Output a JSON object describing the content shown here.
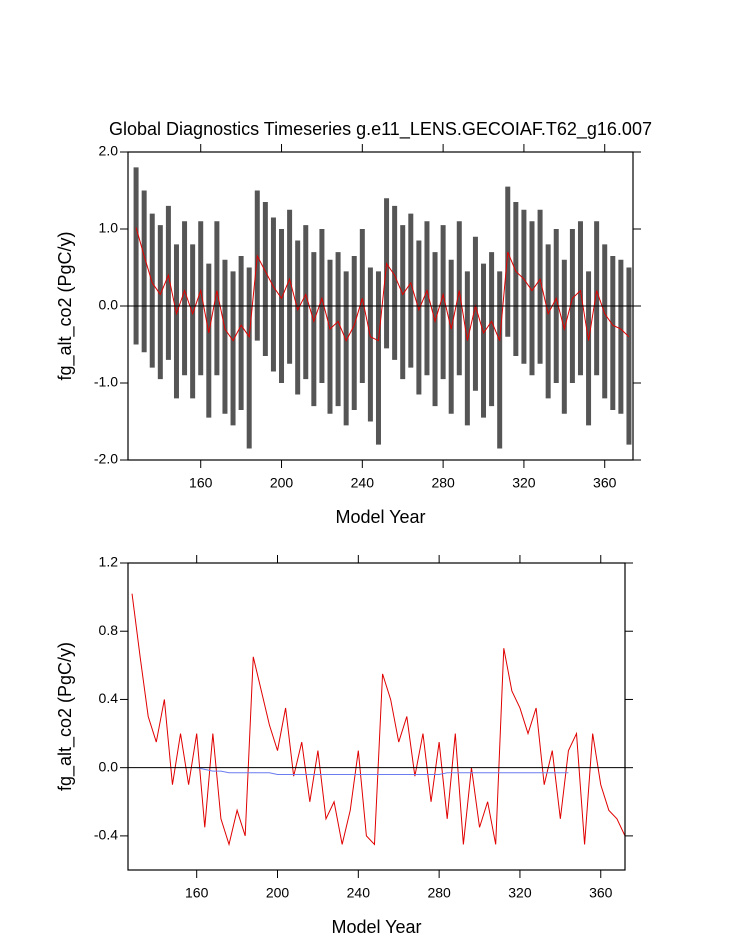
{
  "chart_data": [
    {
      "type": "range",
      "title": "Global Diagnostics Timeseries g.e11_LENS.GECOIAF.T62_g16.007",
      "x_label": "Model Year",
      "y_label": "fg_alt_co2 (PgC/y)",
      "x": [
        128,
        132,
        136,
        140,
        144,
        148,
        152,
        156,
        160,
        164,
        168,
        172,
        176,
        180,
        184,
        188,
        192,
        196,
        200,
        204,
        208,
        212,
        216,
        220,
        224,
        228,
        232,
        236,
        240,
        244,
        248,
        252,
        256,
        260,
        264,
        268,
        272,
        276,
        280,
        284,
        288,
        292,
        296,
        300,
        304,
        308,
        312,
        316,
        320,
        324,
        328,
        332,
        336,
        340,
        344,
        348,
        352,
        356,
        360,
        364,
        368,
        372
      ],
      "xlim": [
        124,
        374
      ],
      "xticks": [
        160,
        200,
        240,
        280,
        320,
        360
      ],
      "ylim": [
        -2,
        2
      ],
      "yticks": [
        {
          "value": -2,
          "label": "-2.0"
        },
        {
          "value": -1,
          "label": "-1.0"
        },
        {
          "value": 0,
          "label": "0.0"
        },
        {
          "value": 1,
          "label": "1.0"
        },
        {
          "value": 2,
          "label": "2.0"
        }
      ],
      "series": [
        {
          "color": "#555555",
          "values": [
            1.8,
            1.5,
            1.2,
            1.05,
            1.3,
            0.8,
            1.1,
            0.8,
            1.1,
            0.55,
            1.1,
            0.6,
            0.45,
            0.65,
            0.5,
            1.5,
            1.35,
            1.15,
            1.0,
            1.25,
            0.85,
            1.05,
            0.7,
            1.0,
            0.6,
            0.7,
            0.45,
            0.65,
            1.0,
            0.5,
            0.45,
            1.4,
            1.3,
            1.05,
            1.2,
            0.85,
            1.1,
            0.7,
            1.05,
            0.6,
            1.1,
            0.45,
            0.9,
            0.55,
            0.7,
            0.45,
            1.55,
            1.35,
            1.25,
            1.1,
            1.25,
            0.8,
            1.0,
            0.6,
            1.0,
            1.1,
            0.45,
            1.1,
            0.8,
            0.65,
            0.6,
            0.5
          ]
        },
        {
          "color": "#555555",
          "values": [
            -0.5,
            -0.6,
            -0.8,
            -0.95,
            -0.7,
            -1.2,
            -0.9,
            -1.2,
            -0.9,
            -1.45,
            -0.9,
            -1.4,
            -1.55,
            -1.35,
            -1.85,
            -0.45,
            -0.65,
            -0.85,
            -1.0,
            -0.75,
            -1.15,
            -0.95,
            -1.3,
            -1.0,
            -1.4,
            -1.3,
            -1.55,
            -1.35,
            -1.0,
            -1.5,
            -1.8,
            -0.55,
            -0.7,
            -0.95,
            -0.8,
            -1.15,
            -0.9,
            -1.3,
            -0.95,
            -1.4,
            -0.9,
            -1.55,
            -1.1,
            -1.45,
            -1.3,
            -1.85,
            -0.4,
            -0.65,
            -0.75,
            -0.9,
            -0.75,
            -1.2,
            -1.0,
            -1.4,
            -1.0,
            -0.9,
            -1.55,
            -0.9,
            -1.2,
            -1.35,
            -1.4,
            -1.8
          ]
        },
        {
          "color": "#e00000",
          "values": [
            1.02,
            0.65,
            0.3,
            0.15,
            0.4,
            -0.1,
            0.2,
            -0.1,
            0.2,
            -0.35,
            0.2,
            -0.3,
            -0.45,
            -0.25,
            -0.4,
            0.65,
            0.45,
            0.25,
            0.1,
            0.35,
            -0.05,
            0.15,
            -0.2,
            0.1,
            -0.3,
            -0.2,
            -0.45,
            -0.25,
            0.1,
            -0.4,
            -0.45,
            0.55,
            0.4,
            0.15,
            0.3,
            -0.05,
            0.2,
            -0.2,
            0.15,
            -0.3,
            0.2,
            -0.45,
            0.0,
            -0.35,
            -0.2,
            -0.45,
            0.7,
            0.45,
            0.35,
            0.2,
            0.35,
            -0.1,
            0.1,
            -0.3,
            0.1,
            0.2,
            -0.45,
            0.2,
            -0.1,
            -0.25,
            -0.3,
            -0.4
          ]
        }
      ]
    },
    {
      "type": "line",
      "x_label": "Model Year",
      "y_label": "fg_alt_co2 (PgC/y)",
      "x": [
        128,
        132,
        136,
        140,
        144,
        148,
        152,
        156,
        160,
        164,
        168,
        172,
        176,
        180,
        184,
        188,
        192,
        196,
        200,
        204,
        208,
        212,
        216,
        220,
        224,
        228,
        232,
        236,
        240,
        244,
        248,
        252,
        256,
        260,
        264,
        268,
        272,
        276,
        280,
        284,
        288,
        292,
        296,
        300,
        304,
        308,
        312,
        316,
        320,
        324,
        328,
        332,
        336,
        340,
        344,
        348,
        352,
        356,
        360,
        364,
        368,
        372
      ],
      "xlim": [
        126,
        372
      ],
      "xticks": [
        160,
        200,
        240,
        280,
        320,
        360
      ],
      "ylim": [
        -0.6,
        1.2
      ],
      "yticks": [
        {
          "value": -0.4,
          "label": "-0.4"
        },
        {
          "value": 0,
          "label": "0.0"
        },
        0.4,
        0.8,
        1.2
      ],
      "series": [
        {
          "color": "#e00000",
          "values": [
            1.02,
            0.65,
            0.3,
            0.15,
            0.4,
            -0.1,
            0.2,
            -0.1,
            0.2,
            -0.35,
            0.2,
            -0.3,
            -0.45,
            -0.25,
            -0.4,
            0.65,
            0.45,
            0.25,
            0.1,
            0.35,
            -0.05,
            0.15,
            -0.2,
            0.1,
            -0.3,
            -0.2,
            -0.45,
            -0.25,
            0.1,
            -0.4,
            -0.45,
            0.55,
            0.4,
            0.15,
            0.3,
            -0.05,
            0.2,
            -0.2,
            0.15,
            -0.3,
            0.2,
            -0.45,
            0.0,
            -0.35,
            -0.2,
            -0.45,
            0.7,
            0.45,
            0.35,
            0.2,
            0.35,
            -0.1,
            0.1,
            -0.3,
            0.1,
            0.2,
            -0.45,
            0.2,
            -0.1,
            -0.25,
            -0.3,
            -0.4
          ]
        },
        {
          "color": "#6a7cf0",
          "values": [
            null,
            null,
            null,
            null,
            null,
            null,
            null,
            null,
            0.0,
            -0.01,
            -0.02,
            -0.02,
            -0.03,
            -0.03,
            -0.03,
            -0.03,
            -0.03,
            -0.03,
            -0.04,
            -0.04,
            -0.04,
            -0.04,
            -0.04,
            -0.04,
            -0.04,
            -0.04,
            -0.04,
            -0.04,
            -0.04,
            -0.04,
            -0.04,
            -0.04,
            -0.04,
            -0.04,
            -0.04,
            -0.04,
            -0.04,
            -0.04,
            -0.04,
            -0.03,
            -0.03,
            -0.03,
            -0.03,
            -0.03,
            -0.03,
            -0.03,
            -0.03,
            -0.03,
            -0.03,
            -0.03,
            -0.03,
            -0.03,
            -0.03,
            -0.03,
            -0.03,
            null,
            null,
            null,
            null,
            null,
            null,
            null
          ]
        }
      ]
    }
  ]
}
